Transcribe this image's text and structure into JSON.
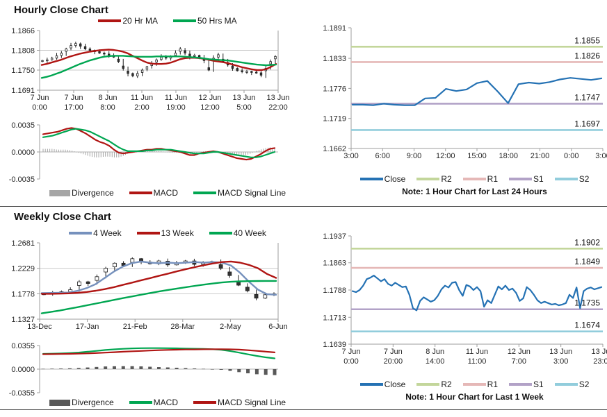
{
  "sections": {
    "hourly": {
      "title": "Hourly Close Chart"
    },
    "weekly": {
      "title": "Weekly Close Chart"
    }
  },
  "colors": {
    "red": "#b01513",
    "green": "#00a651",
    "close_blue": "#2572b4",
    "ma4_blue": "#7691bd",
    "r2": "#c3d69b",
    "r1": "#e5b8b7",
    "s1": "#b2a2c7",
    "s2": "#92cddc",
    "divergence_hourly": "#a6a6a6",
    "divergence_weekly": "#595959"
  },
  "chart_data": [
    {
      "id": "hourly-price",
      "type": "candlestick",
      "ylim": [
        1.1691,
        1.1866
      ],
      "y_ticks": [
        {
          "label": "1.1866",
          "v": 1.1866
        },
        {
          "label": "1.1808",
          "v": 1.1808
        },
        {
          "label": "1.1750",
          "v": 1.175
        },
        {
          "label": "1.1691",
          "v": 1.1691
        }
      ],
      "gridlines": [
        1.1808,
        1.175
      ],
      "x_labels": [
        [
          "7 Jun",
          "0:00"
        ],
        [
          "7 Jun",
          "17:00"
        ],
        [
          "8 Jun",
          "8:00"
        ],
        [
          "11 Jun",
          "2:00"
        ],
        [
          "11 Jun",
          "19:00"
        ],
        [
          "12 Jun",
          "12:00"
        ],
        [
          "13 Jun",
          "5:00"
        ],
        [
          "13 Jun",
          "22:00"
        ]
      ],
      "candle_closes": [
        1.1778,
        1.178,
        1.1785,
        1.1792,
        1.18,
        1.1812,
        1.1822,
        1.1828,
        1.182,
        1.1812,
        1.1808,
        1.1804,
        1.18,
        1.1797,
        1.1793,
        1.1788,
        1.1775,
        1.1755,
        1.174,
        1.1733,
        1.174,
        1.175,
        1.176,
        1.177,
        1.178,
        1.1788,
        1.1785,
        1.179,
        1.18,
        1.1812,
        1.18,
        1.179,
        1.1793,
        1.1788,
        1.1778,
        1.175,
        1.1785,
        1.1795,
        1.1775,
        1.1765,
        1.1755,
        1.1748,
        1.1745,
        1.1746,
        1.1744,
        1.1743,
        1.1735,
        1.1755,
        1.1775,
        1.179
      ],
      "series": [
        {
          "name": "20 Hr MA",
          "color": "#b01513",
          "values": [
            1.1765,
            1.1768,
            1.1772,
            1.1776,
            1.178,
            1.1785,
            1.179,
            1.1794,
            1.1798,
            1.1801,
            1.1804,
            1.1806,
            1.1808,
            1.1809,
            1.181,
            1.1809,
            1.1807,
            1.1804,
            1.1799,
            1.1792,
            1.1785,
            1.1778,
            1.1772,
            1.1769,
            1.1768,
            1.1768,
            1.1769,
            1.1772,
            1.1777,
            1.1782,
            1.1785,
            1.1786,
            1.1786,
            1.1785,
            1.1783,
            1.178,
            1.1777,
            1.1775,
            1.1773,
            1.177,
            1.1766,
            1.1762,
            1.1758,
            1.1755,
            1.1752,
            1.175,
            1.175,
            1.1753,
            1.176,
            1.1768
          ]
        },
        {
          "name": "50 Hrs MA",
          "color": "#00a651",
          "values": [
            1.1727,
            1.173,
            1.1734,
            1.1739,
            1.1744,
            1.175,
            1.1756,
            1.1762,
            1.1768,
            1.1773,
            1.1778,
            1.1782,
            1.1786,
            1.1789,
            1.1791,
            1.1792,
            1.1792,
            1.1792,
            1.1791,
            1.179,
            1.1789,
            1.1789,
            1.1789,
            1.1789,
            1.179,
            1.179,
            1.179,
            1.179,
            1.179,
            1.179,
            1.1789,
            1.1788,
            1.1787,
            1.1786,
            1.1784,
            1.1782,
            1.1781,
            1.178,
            1.1779,
            1.1778,
            1.1776,
            1.1774,
            1.1772,
            1.177,
            1.1768,
            1.1766,
            1.1765,
            1.1764,
            1.1765,
            1.1766
          ]
        }
      ]
    },
    {
      "id": "hourly-macd",
      "type": "macd",
      "ylim": [
        -0.0035,
        0.0035
      ],
      "y_ticks": [
        {
          "label": "0.0035",
          "v": 0.0035
        },
        {
          "label": "0.0000",
          "v": 0.0
        },
        {
          "label": "-0.0035",
          "v": -0.0035
        }
      ],
      "divergence": {
        "name": "Divergence",
        "color": "#a6a6a6"
      },
      "series": [
        {
          "name": "MACD",
          "color": "#b01513",
          "values": [
            0.0023,
            0.0024,
            0.0025,
            0.0026,
            0.0028,
            0.003,
            0.0031,
            0.003,
            0.0027,
            0.0024,
            0.002,
            0.0016,
            0.0013,
            0.0011,
            0.0008,
            0.0003,
            -0.0001,
            -0.0002,
            -0.0001,
            0.0,
            0.0001,
            0.0002,
            0.0003,
            0.0003,
            0.0004,
            0.0004,
            0.0003,
            0.0002,
            0.0001,
            0.0,
            -0.0002,
            -0.0004,
            -0.0004,
            -0.0002,
            -0.0001,
            0.0,
            0.0001,
            0.0,
            -0.0002,
            -0.0004,
            -0.0006,
            -0.0008,
            -0.0009,
            -0.001,
            -0.0009,
            -0.0006,
            -0.0003,
            0.0001,
            0.0004,
            0.0005
          ]
        },
        {
          "name": "MACD Signal Line",
          "color": "#00a651",
          "values": [
            0.0019,
            0.002,
            0.0021,
            0.0023,
            0.0025,
            0.0027,
            0.0029,
            0.003,
            0.0029,
            0.0028,
            0.0026,
            0.0023,
            0.002,
            0.0017,
            0.0014,
            0.001,
            0.0006,
            0.0003,
            0.0001,
            0.0001,
            0.0001,
            0.0001,
            0.0002,
            0.0002,
            0.0003,
            0.0003,
            0.0003,
            0.0003,
            0.0002,
            0.0001,
            0.0,
            -0.0001,
            -0.0002,
            -0.0002,
            -0.0002,
            -0.0001,
            0.0,
            0.0,
            -0.0001,
            -0.0002,
            -0.0003,
            -0.0004,
            -0.0005,
            -0.0006,
            -0.0007,
            -0.0007,
            -0.0006,
            -0.0004,
            -0.0002,
            0.0
          ]
        }
      ]
    },
    {
      "id": "hourly-pivot",
      "type": "line",
      "ylim": [
        1.1662,
        1.1891
      ],
      "y_ticks": [
        {
          "label": "1.1891",
          "v": 1.1891
        },
        {
          "label": "1.1833",
          "v": 1.1833
        },
        {
          "label": "1.1776",
          "v": 1.1776
        },
        {
          "label": "1.1719",
          "v": 1.1719
        },
        {
          "label": "1.1662",
          "v": 1.1662
        }
      ],
      "x_labels": [
        "3:00",
        "6:00",
        "9:00",
        "12:00",
        "15:00",
        "18:00",
        "21:00",
        "0:00",
        "3:00"
      ],
      "series": [
        {
          "name": "Close",
          "color": "#2572b4",
          "values": [
            1.1745,
            1.1745,
            1.1744,
            1.1747,
            1.1745,
            1.1744,
            1.1744,
            1.1757,
            1.1758,
            1.1775,
            1.1771,
            1.1774,
            1.1786,
            1.179,
            1.177,
            1.1748,
            1.1784,
            1.1787,
            1.1785,
            1.1788,
            1.1793,
            1.1796,
            1.1794,
            1.1792,
            1.1795
          ]
        }
      ],
      "levels": [
        {
          "name": "R2",
          "label": "1.1855",
          "v": 1.1855,
          "color": "#c3d69b"
        },
        {
          "name": "R1",
          "label": "1.1826",
          "v": 1.1826,
          "color": "#e5b8b7"
        },
        {
          "name": "S1",
          "label": "1.1747",
          "v": 1.1747,
          "color": "#b2a2c7"
        },
        {
          "name": "S2",
          "label": "1.1697",
          "v": 1.1697,
          "color": "#92cddc"
        }
      ],
      "note": "Note: 1 Hour Chart for Last 24 Hours"
    },
    {
      "id": "weekly-price",
      "type": "candlestick",
      "ylim": [
        1.1327,
        1.2681
      ],
      "y_ticks": [
        {
          "label": "1.2681",
          "v": 1.2681
        },
        {
          "label": "1.2229",
          "v": 1.2229
        },
        {
          "label": "1.1778",
          "v": 1.1778
        },
        {
          "label": "1.1327",
          "v": 1.1327
        }
      ],
      "gridlines": [
        1.2229,
        1.1778
      ],
      "x_labels": [
        "13-Dec",
        "17-Jan",
        "21-Feb",
        "28-Mar",
        "2-May",
        "6-Jun"
      ],
      "candle_closes": [
        1.1778,
        1.1795,
        1.1815,
        1.185,
        1.199,
        1.196,
        1.208,
        1.2229,
        1.232,
        1.228,
        1.24,
        1.234,
        1.231,
        1.236,
        1.229,
        1.233,
        1.236,
        1.23,
        1.233,
        1.235,
        1.2229,
        1.21,
        1.193,
        1.183,
        1.17,
        1.176,
        1.1775
      ],
      "series": [
        {
          "name": "4 Week",
          "color": "#7691bd",
          "values": [
            1.179,
            1.1792,
            1.1795,
            1.18,
            1.183,
            1.188,
            1.195,
            1.206,
            1.217,
            1.226,
            1.232,
            1.235,
            1.233,
            1.232,
            1.233,
            1.232,
            1.233,
            1.234,
            1.233,
            1.234,
            1.233,
            1.228,
            1.215,
            1.199,
            1.185,
            1.177,
            1.176
          ]
        },
        {
          "name": "13 Week",
          "color": "#b01513",
          "values": [
            1.1778,
            1.1778,
            1.178,
            1.1785,
            1.1795,
            1.181,
            1.1832,
            1.186,
            1.1895,
            1.1935,
            1.1975,
            1.2015,
            1.2055,
            1.2095,
            1.2135,
            1.2175,
            1.2215,
            1.225,
            1.2285,
            1.2315,
            1.234,
            1.235,
            1.233,
            1.229,
            1.223,
            1.213,
            1.206
          ]
        },
        {
          "name": "40 Week",
          "color": "#00a651",
          "values": [
            1.143,
            1.1455,
            1.148,
            1.151,
            1.154,
            1.1572,
            1.1604,
            1.1636,
            1.1668,
            1.17,
            1.173,
            1.176,
            1.179,
            1.1818,
            1.1845,
            1.187,
            1.1895,
            1.1918,
            1.194,
            1.196,
            1.1978,
            1.199,
            1.1998,
            1.2002,
            1.2004,
            1.2005,
            1.2005
          ]
        }
      ]
    },
    {
      "id": "weekly-macd",
      "type": "macd",
      "ylim": [
        -0.0355,
        0.0355
      ],
      "y_ticks": [
        {
          "label": "0.0355",
          "v": 0.0355
        },
        {
          "label": "0.0000",
          "v": 0.0
        },
        {
          "label": "-0.0355",
          "v": -0.0355
        }
      ],
      "divergence": {
        "name": "Divergence",
        "color": "#595959"
      },
      "series": [
        {
          "name": "MACD",
          "color": "#00a651",
          "values": [
            0.023,
            0.0233,
            0.0237,
            0.0242,
            0.025,
            0.0262,
            0.0275,
            0.0288,
            0.0298,
            0.0306,
            0.0312,
            0.0315,
            0.0316,
            0.0316,
            0.0315,
            0.0313,
            0.031,
            0.0307,
            0.0304,
            0.03,
            0.029,
            0.0272,
            0.0248,
            0.0222,
            0.0198,
            0.0178,
            0.0162
          ]
        },
        {
          "name": "MACD Signal Line",
          "color": "#b01513",
          "values": [
            0.0225,
            0.0226,
            0.0228,
            0.023,
            0.0233,
            0.0237,
            0.0242,
            0.0248,
            0.0255,
            0.0262,
            0.0268,
            0.0274,
            0.028,
            0.0285,
            0.0289,
            0.0292,
            0.0295,
            0.0297,
            0.0299,
            0.03,
            0.03,
            0.0298,
            0.0293,
            0.0285,
            0.0275,
            0.0263,
            0.0252
          ]
        }
      ]
    },
    {
      "id": "weekly-pivot",
      "type": "line",
      "ylim": [
        1.1639,
        1.1937
      ],
      "y_ticks": [
        {
          "label": "1.1937",
          "v": 1.1937
        },
        {
          "label": "1.1863",
          "v": 1.1863
        },
        {
          "label": "1.1788",
          "v": 1.1788
        },
        {
          "label": "1.1713",
          "v": 1.1713
        },
        {
          "label": "1.1639",
          "v": 1.1639
        }
      ],
      "x_labels": [
        [
          "7 Jun",
          "0:00"
        ],
        [
          "7 Jun",
          "20:00"
        ],
        [
          "8 Jun",
          "14:00"
        ],
        [
          "11 Jun",
          "11:00"
        ],
        [
          "12 Jun",
          "7:00"
        ],
        [
          "13 Jun",
          "3:00"
        ],
        [
          "13 Jun",
          "23:00"
        ]
      ],
      "series": [
        {
          "name": "Close",
          "color": "#2572b4",
          "values": [
            1.1785,
            1.1782,
            1.1788,
            1.18,
            1.1818,
            1.1822,
            1.1828,
            1.182,
            1.1812,
            1.1818,
            1.1805,
            1.18,
            1.1808,
            1.1802,
            1.1796,
            1.1798,
            1.1775,
            1.1738,
            1.1732,
            1.1758,
            1.1768,
            1.1762,
            1.1756,
            1.176,
            1.1772,
            1.179,
            1.18,
            1.1795,
            1.1808,
            1.181,
            1.1788,
            1.1772,
            1.1802,
            1.1798,
            1.1788,
            1.1796,
            1.1785,
            1.1742,
            1.176,
            1.1752,
            1.1775,
            1.1798,
            1.179,
            1.18,
            1.1788,
            1.1792,
            1.178,
            1.1758,
            1.1765,
            1.1796,
            1.1788,
            1.1775,
            1.176,
            1.1752,
            1.1756,
            1.1752,
            1.1748,
            1.175,
            1.1746,
            1.1748,
            1.1752,
            1.1775,
            1.1766,
            1.1795,
            1.1738,
            1.1785,
            1.1792,
            1.1795,
            1.179,
            1.1793,
            1.1796
          ]
        }
      ],
      "levels": [
        {
          "name": "R2",
          "label": "1.1902",
          "v": 1.1902,
          "color": "#c3d69b"
        },
        {
          "name": "R1",
          "label": "1.1849",
          "v": 1.1849,
          "color": "#e5b8b7"
        },
        {
          "name": "S1",
          "label": "1.1735",
          "v": 1.1735,
          "color": "#b2a2c7"
        },
        {
          "name": "S2",
          "label": "1.1674",
          "v": 1.1674,
          "color": "#92cddc"
        }
      ],
      "note": "Note: 1 Hour Chart for Last 1 Week"
    }
  ]
}
